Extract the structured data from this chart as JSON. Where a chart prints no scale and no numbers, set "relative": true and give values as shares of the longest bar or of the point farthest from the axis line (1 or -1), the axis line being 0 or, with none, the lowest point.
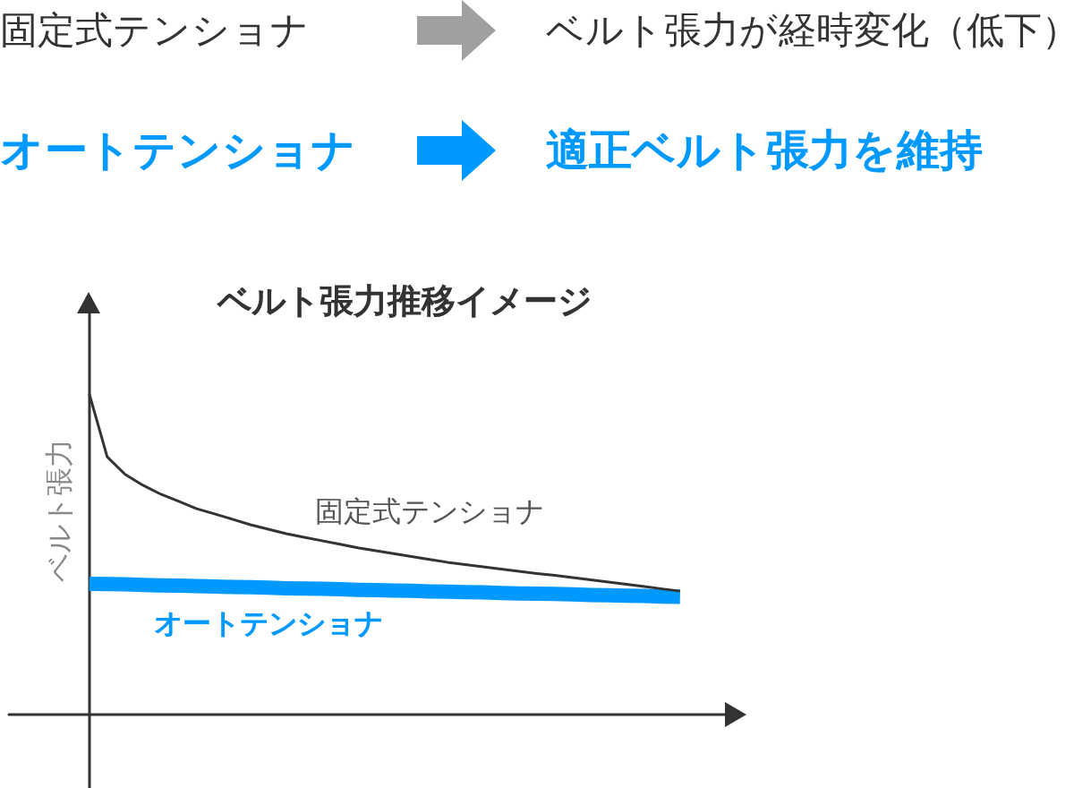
{
  "chart_data": {
    "type": "line",
    "title": "ベルト張力推移イメージ",
    "ylabel": "ベルト張力",
    "relative": true,
    "marker": "none",
    "annotations": [
      "固定式テンショナ",
      "ベルト張力が経時変化（低下）",
      "オートテンショナ",
      "適正ベルト張力を維持"
    ],
    "categories": [
      null,
      null,
      null,
      null,
      null,
      null,
      null,
      null,
      null,
      null,
      null,
      null,
      null,
      null,
      null,
      null,
      null,
      null,
      null,
      null,
      null,
      null,
      null,
      null,
      null,
      null,
      null,
      null,
      null,
      null,
      null,
      null,
      null,
      null
    ],
    "series": [
      {
        "name": "固定式テンショナ",
        "color": "#333333",
        "values": [
          1,
          0.804,
          0.749,
          0.715,
          0.687,
          0.665,
          0.642,
          0.626,
          0.609,
          0.592,
          0.578,
          0.564,
          0.553,
          0.542,
          0.531,
          0.52,
          0.511,
          0.502,
          0.493,
          0.484,
          0.475,
          0.468,
          0.461,
          0.454,
          0.447,
          0.44,
          0.434,
          0.427,
          0.42,
          0.413,
          0.406,
          0.399,
          0.392,
          0.385
        ]
      },
      {
        "name": "オートテンショナ",
        "color": "#0099ff",
        "values": [
          0.408,
          0.407,
          0.406,
          0.404,
          0.403,
          0.402,
          0.401,
          0.399,
          0.398,
          0.397,
          0.396,
          0.394,
          0.393,
          0.392,
          0.391,
          0.389,
          0.388,
          0.387,
          0.386,
          0.384,
          0.383,
          0.382,
          0.381,
          0.379,
          0.378,
          0.377,
          0.376,
          0.375,
          0.373,
          0.372,
          0.371,
          0.37,
          0.368,
          0.367
        ]
      }
    ]
  }
}
